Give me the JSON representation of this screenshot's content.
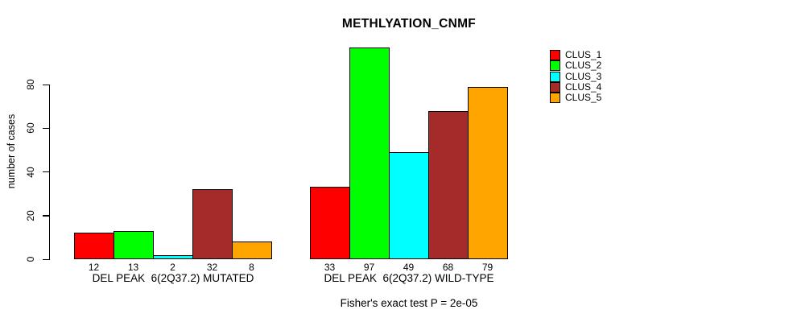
{
  "figure": {
    "title": "METHLYATION_CNMF",
    "footnote": "Fisher's exact test P = 2e-05"
  },
  "chart_data": {
    "type": "bar",
    "title": "METHLYATION_CNMF",
    "ylabel": "number of cases",
    "xlabel": "",
    "ylim": [
      0,
      100
    ],
    "yticks": [
      0,
      20,
      40,
      60,
      80
    ],
    "grid": false,
    "legend_position": "top-right",
    "categories": [
      "DEL PEAK  6(2Q37.2) MUTATED",
      "DEL PEAK  6(2Q37.2) WILD-TYPE"
    ],
    "series": [
      {
        "name": "CLUS_1",
        "color": "#ff0000",
        "values": [
          12,
          33
        ]
      },
      {
        "name": "CLUS_2",
        "color": "#00ff00",
        "values": [
          13,
          97
        ]
      },
      {
        "name": "CLUS_3",
        "color": "#00ffff",
        "values": [
          2,
          49
        ]
      },
      {
        "name": "CLUS_4",
        "color": "#a52a2a",
        "values": [
          32,
          68
        ]
      },
      {
        "name": "CLUS_5",
        "color": "#ffa500",
        "values": [
          8,
          79
        ]
      }
    ],
    "bar_value_labels": [
      [
        12,
        13,
        2,
        32,
        8
      ],
      [
        33,
        97,
        49,
        68,
        79
      ]
    ],
    "footnote": "Fisher's exact test P = 2e-05"
  }
}
